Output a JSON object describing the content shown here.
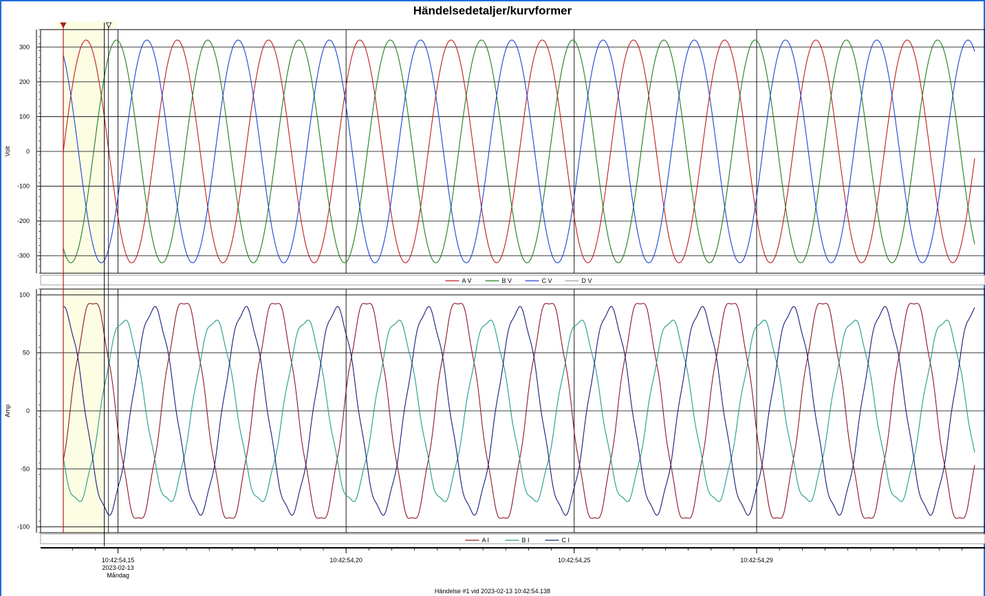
{
  "title": "Händelsedetaljer/kurvformer",
  "footer": "Händelse #1 vid 2023-02-13 10:42:54.138",
  "x_axis": {
    "ticks": [
      {
        "t": 0.15,
        "lines": [
          "10:42:54,15",
          "2023-02-13",
          "Måndag"
        ]
      },
      {
        "t": 0.2,
        "lines": [
          "10:42:54,20"
        ]
      },
      {
        "t": 0.25,
        "lines": [
          "10:42:54,25"
        ]
      },
      {
        "t": 0.29,
        "lines": [
          "10:42:54,29"
        ]
      }
    ]
  },
  "colors": {
    "A": "#c0191c",
    "B": "#1c7d1c",
    "C": "#1d40d8",
    "D": "#a0a0a0",
    "AI": "#8b1420",
    "BI": "#1f9a86",
    "CI": "#141a7a",
    "highlight": "#fdfde4",
    "frame": "#1e6fd9"
  },
  "chart_data": [
    {
      "type": "line",
      "ylabel": "Volt",
      "ylim": [
        -350,
        350
      ],
      "yticks": [
        300,
        200,
        100,
        0,
        -100,
        -200,
        -300
      ],
      "xlim": [
        0.138,
        0.3381
      ],
      "legend": [
        "A V",
        "B V",
        "C V",
        "D V"
      ],
      "legend_position": "bottom-center",
      "series": [
        {
          "name": "A V",
          "amplitude": 320,
          "phase_deg": 0,
          "frequency_hz": 50
        },
        {
          "name": "B V",
          "amplitude": 320,
          "phase_deg": -120,
          "frequency_hz": 50
        },
        {
          "name": "C V",
          "amplitude": 320,
          "phase_deg": 120,
          "frequency_hz": 50
        },
        {
          "name": "D V",
          "amplitude": 0,
          "phase_deg": 0,
          "frequency_hz": 50
        }
      ]
    },
    {
      "type": "line",
      "ylabel": "Amp",
      "ylim": [
        -105,
        105
      ],
      "yticks": [
        100,
        50,
        0,
        -50,
        -100
      ],
      "xlim": [
        0.138,
        0.3381
      ],
      "legend": [
        "A I",
        "B I",
        "C I"
      ],
      "legend_position": "bottom-center",
      "series": [
        {
          "name": "A I",
          "amplitude": 95,
          "phase_deg": -27,
          "frequency_hz": 50
        },
        {
          "name": "B I",
          "amplitude": 78,
          "phase_deg": -147,
          "frequency_hz": 50
        },
        {
          "name": "C I",
          "amplitude": 88,
          "phase_deg": 93,
          "frequency_hz": 50
        }
      ]
    }
  ]
}
